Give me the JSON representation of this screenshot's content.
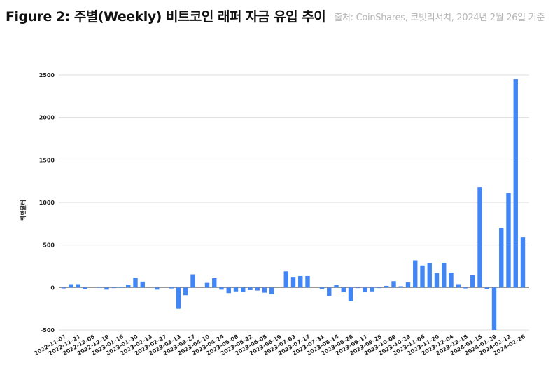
{
  "header": {
    "title": "Figure 2: 주별(Weekly) 비트코인 래퍼 자금 유입 추이",
    "source": "출처: CoinShares, 코빗리서치, 2024년 2월 26일 기준"
  },
  "chart_data": {
    "type": "bar",
    "title": "",
    "xlabel": "",
    "ylabel": "백만달러",
    "ylim": [
      -500,
      2500
    ],
    "yticks": [
      -500,
      0,
      500,
      1000,
      1500,
      2000,
      2500
    ],
    "grid": true,
    "bar_color": "#4285f4",
    "categories": [
      "2022-11-07",
      "",
      "2022-11-21",
      "",
      "2022-12-05",
      "",
      "2022-12-19",
      "",
      "2023-01-16",
      "",
      "2023-01-30",
      "",
      "2023-02-13",
      "",
      "2023-02-27",
      "",
      "2023-03-13",
      "",
      "2023-03-27",
      "",
      "2023-04-10",
      "",
      "2023-04-24",
      "",
      "2023-05-08",
      "",
      "2023-05-22",
      "",
      "2023-06-05",
      "",
      "2023-06-19",
      "",
      "2023-07-03",
      "",
      "2023-07-17",
      "",
      "2023-07-31",
      "",
      "2023-08-14",
      "",
      "2023-08-28",
      "",
      "2023-09-11",
      "",
      "2023-09-25",
      "",
      "2023-10-09",
      "",
      "2023-10-23",
      "",
      "2023-11-06",
      "",
      "2023-11-20",
      "",
      "2023-12-04",
      "",
      "2023-12-18",
      "",
      "2024-01-15",
      "",
      "2024-01-29",
      "",
      "2024-02-12",
      "",
      "2024-02-26"
    ],
    "values": [
      -10,
      40,
      40,
      -20,
      0,
      5,
      -25,
      -5,
      5,
      35,
      115,
      70,
      0,
      -25,
      0,
      -10,
      -250,
      -90,
      155,
      0,
      55,
      110,
      -25,
      -65,
      -45,
      -50,
      -30,
      -35,
      -60,
      -80,
      0,
      190,
      125,
      135,
      135,
      0,
      -15,
      -100,
      30,
      -55,
      -160,
      -5,
      -50,
      -45,
      -5,
      20,
      75,
      15,
      60,
      320,
      260,
      285,
      170,
      290,
      175,
      40,
      -10,
      145,
      1180,
      -20,
      -500,
      700,
      1110,
      2450,
      595
    ]
  }
}
